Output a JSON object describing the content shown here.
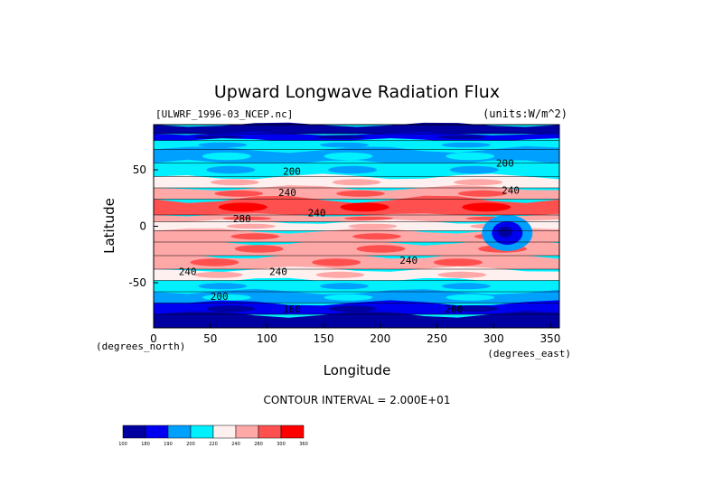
{
  "title": "Upward Longwave Radiation Flux",
  "file_label": "[ULWRF_1996-03_NCEP.nc]",
  "units_label": "(units:W/m^2)",
  "footer": "CONTOUR INTERVAL = 2.000E+01",
  "colors": {
    "level_fills": [
      "#0000a0",
      "#0000f0",
      "#00a0ff",
      "#00f0ff",
      "#fff0f0",
      "#ffa8a8",
      "#ff5050",
      "#ff0000"
    ]
  },
  "chart_data": {
    "type": "heatmap",
    "title": "Upward Longwave Radiation Flux",
    "xlabel": "Longitude",
    "ylabel": "Latitude",
    "x_unit_label": "(degrees_east)",
    "y_unit_label": "(degrees_north)",
    "xlim": [
      0,
      358
    ],
    "ylim": [
      -90,
      90
    ],
    "x_ticks": [
      0,
      50,
      100,
      150,
      200,
      250,
      300,
      350
    ],
    "y_ticks": [
      -50,
      0,
      50
    ],
    "contour_interval": 20,
    "colorbar": {
      "levels": [
        "100",
        "180",
        "190",
        "200",
        "220",
        "240",
        "280",
        "300",
        "360"
      ]
    },
    "contour_labels": [
      {
        "text": "200",
        "lon": 122,
        "lat": 49
      },
      {
        "text": "240",
        "lon": 118,
        "lat": 30
      },
      {
        "text": "240",
        "lon": 144,
        "lat": 12
      },
      {
        "text": "280",
        "lon": 78,
        "lat": 7
      },
      {
        "text": "240",
        "lon": 30,
        "lat": -40
      },
      {
        "text": "240",
        "lon": 110,
        "lat": -40
      },
      {
        "text": "240",
        "lon": 225,
        "lat": -30
      },
      {
        "text": "200",
        "lon": 58,
        "lat": -62
      },
      {
        "text": "160",
        "lon": 122,
        "lat": -73
      },
      {
        "text": "200",
        "lon": 265,
        "lat": -73
      },
      {
        "text": "200",
        "lon": 310,
        "lat": 56
      },
      {
        "text": "240",
        "lon": 315,
        "lat": 32
      }
    ],
    "grid": false
  }
}
